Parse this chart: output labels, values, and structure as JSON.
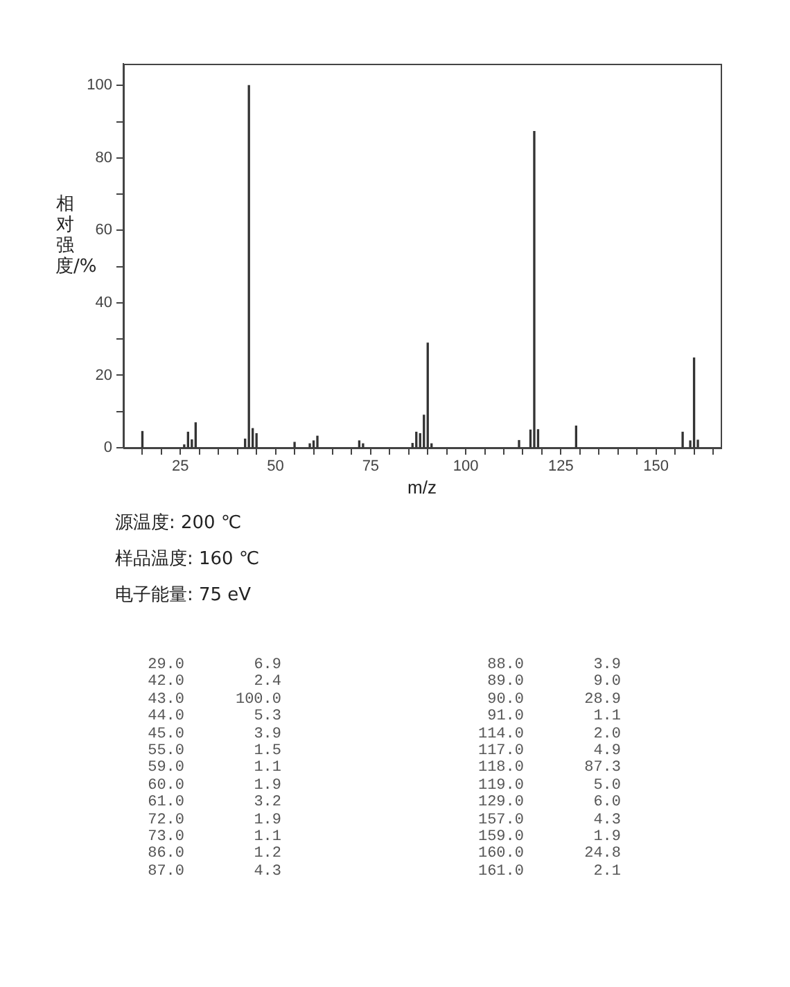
{
  "chart_data": [
    {
      "type": "bar",
      "xlabel": "m/z",
      "ylabel": "相对强度/%",
      "x": [
        15,
        26,
        27,
        28,
        29,
        42,
        43,
        44,
        45,
        55,
        59,
        60,
        61,
        72,
        73,
        86,
        87,
        88,
        89,
        90,
        91,
        114,
        117,
        118,
        119,
        129,
        157,
        159,
        160,
        161
      ],
      "values": [
        4.5,
        0.8,
        4.3,
        2.2,
        6.9,
        2.4,
        100.0,
        5.3,
        3.9,
        1.5,
        1.1,
        1.9,
        3.2,
        1.9,
        1.1,
        1.2,
        4.3,
        3.9,
        9.0,
        28.9,
        1.1,
        2.0,
        4.9,
        87.3,
        5.0,
        6.0,
        4.3,
        1.9,
        24.8,
        2.1
      ],
      "color": "#333333",
      "xlim": [
        10,
        167
      ],
      "xticks": [
        {
          "value": 15,
          "label": null
        },
        {
          "value": 20,
          "label": null
        },
        25,
        {
          "value": 30,
          "label": null
        },
        {
          "value": 35,
          "label": null
        },
        {
          "value": 40,
          "label": null
        },
        {
          "value": 45,
          "label": null
        },
        50,
        {
          "value": 55,
          "label": null
        },
        {
          "value": 60,
          "label": null
        },
        {
          "value": 65,
          "label": null
        },
        {
          "value": 70,
          "label": null
        },
        75,
        {
          "value": 80,
          "label": null
        },
        {
          "value": 85,
          "label": null
        },
        {
          "value": 90,
          "label": null
        },
        {
          "value": 95,
          "label": null
        },
        100,
        {
          "value": 105,
          "label": null
        },
        {
          "value": 110,
          "label": null
        },
        {
          "value": 115,
          "label": null
        },
        {
          "value": 120,
          "label": null
        },
        125,
        {
          "value": 130,
          "label": null
        },
        {
          "value": 135,
          "label": null
        },
        {
          "value": 140,
          "label": null
        },
        {
          "value": 145,
          "label": null
        },
        150,
        {
          "value": 155,
          "label": null
        },
        {
          "value": 160,
          "label": null
        },
        {
          "value": 165,
          "label": null
        }
      ],
      "ylim": [
        0,
        106
      ],
      "yticks": [
        0,
        {
          "value": 10,
          "label": null
        },
        20,
        {
          "value": 30,
          "label": null
        },
        40,
        {
          "value": 50,
          "label": null
        },
        60,
        {
          "value": 70,
          "label": null
        },
        80,
        {
          "value": 90,
          "label": null
        },
        100
      ],
      "grid": false,
      "legend": false,
      "annotations": [
        "源温度: 200 ℃",
        "样品温度: 160 ℃",
        "电子能量: 75 eV"
      ]
    },
    {
      "type": "other",
      "categories": [
        "29.0",
        "42.0",
        "43.0",
        "44.0",
        "45.0",
        "55.0",
        "59.0",
        "60.0",
        "61.0",
        "72.0",
        "73.0",
        "86.0",
        "87.0",
        "88.0",
        "89.0",
        "90.0",
        "91.0",
        "114.0",
        "117.0",
        "118.0",
        "119.0",
        "129.0",
        "157.0",
        "159.0",
        "160.0",
        "161.0"
      ],
      "value_labels": [
        "6.9",
        "2.4",
        "100.0",
        "5.3",
        "3.9",
        "1.5",
        "1.1",
        "1.9",
        "3.2",
        "1.9",
        "1.1",
        "1.2",
        "4.3",
        "3.9",
        "9.0",
        "28.9",
        "1.1",
        "2.0",
        "4.9",
        "87.3",
        "5.0",
        "6.0",
        "4.3",
        "1.9",
        "24.8",
        "2.1"
      ]
    }
  ]
}
